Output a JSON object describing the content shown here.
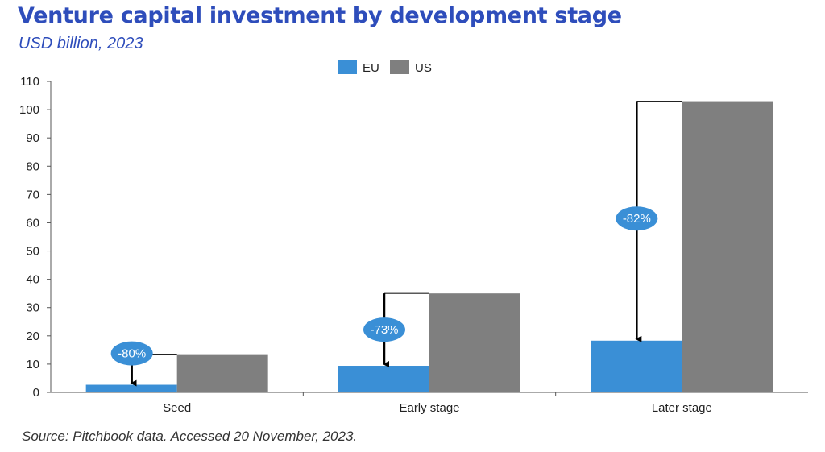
{
  "title": "Venture capital investment by development stage",
  "subtitle": "USD billion, 2023",
  "source": "Source: Pitchbook data. Accessed 20 November, 2023.",
  "colors": {
    "title": "#2e4dbb",
    "eu": "#3a8fd6",
    "us": "#7f7f7f",
    "badge": "#3a8fd6",
    "badge_text": "#ffffff"
  },
  "chart_data": {
    "type": "bar",
    "categories": [
      "Seed",
      "Early stage",
      "Later stage"
    ],
    "series": [
      {
        "name": "EU",
        "values": [
          2.7,
          9.4,
          18.3
        ]
      },
      {
        "name": "US",
        "values": [
          13.5,
          35.0,
          103.0
        ]
      }
    ],
    "annotations": [
      "-80%",
      "-73%",
      "-82%"
    ],
    "ylim": [
      0,
      110
    ],
    "yticks": [
      0,
      10,
      20,
      30,
      40,
      50,
      60,
      70,
      80,
      90,
      100,
      110
    ],
    "xlabel": "",
    "ylabel": "",
    "legend": "top-center",
    "grid": false
  }
}
